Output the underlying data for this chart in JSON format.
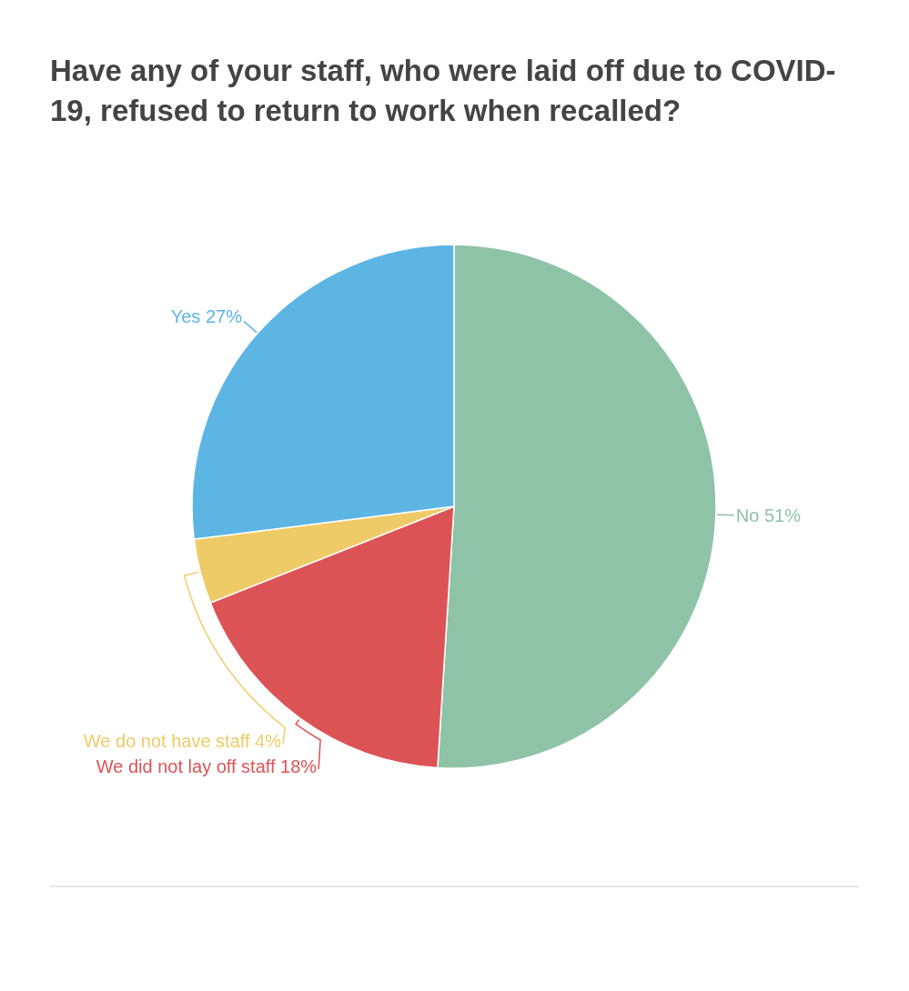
{
  "chart_data": {
    "type": "pie",
    "title": "Have any of your staff, who were laid off due to COVID-19, refused to return to work when recalled?",
    "categories": [
      "No",
      "We did not lay off staff",
      "We do not have staff",
      "Yes"
    ],
    "values": [
      51,
      18,
      4,
      27
    ],
    "value_labels": [
      "51%",
      "18%",
      "4%",
      "27%"
    ],
    "colors": [
      "#8ec3a7",
      "#dc5356",
      "#efcb68",
      "#5db5e4"
    ]
  }
}
